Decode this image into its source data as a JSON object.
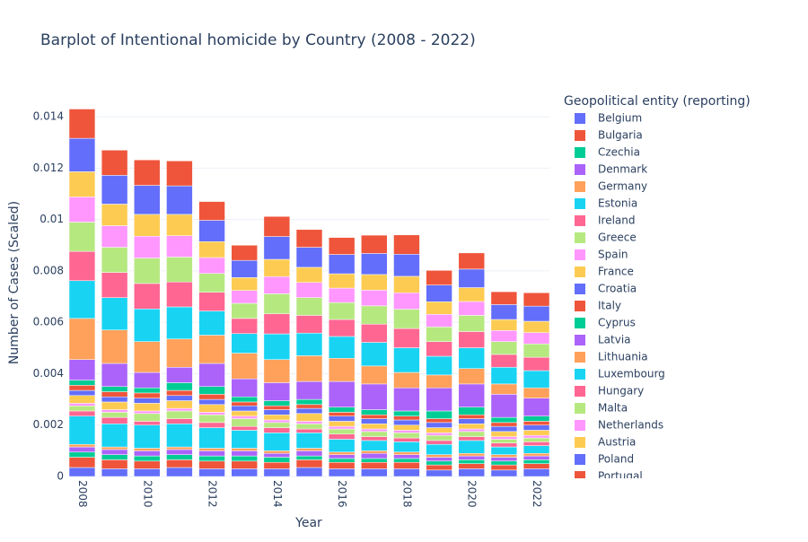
{
  "chart_data": {
    "type": "stacked_bar",
    "title": "Barplot of Intentional homicide by Country (2008 - 2022)",
    "x_label": "Year",
    "y_label": "Number of Cases (Scaled)",
    "legend_title": "Geopolitical entity (reporting)",
    "x": [
      2008,
      2009,
      2010,
      2011,
      2012,
      2013,
      2014,
      2015,
      2016,
      2017,
      2018,
      2019,
      2020,
      2021,
      2022
    ],
    "xlim": [
      2007.6,
      2022.4
    ],
    "xticks": [
      2008,
      2010,
      2012,
      2014,
      2016,
      2018,
      2020,
      2022
    ],
    "ylim": [
      0,
      0.01505
    ],
    "yticks": [
      0,
      0.002,
      0.004,
      0.006,
      0.008,
      0.01,
      0.012,
      0.014
    ],
    "grid": true,
    "series": [
      {
        "name": "Belgium",
        "color": "#636efa",
        "values": [
          0.00035,
          0.0003,
          0.0003,
          0.00035,
          0.0003,
          0.0003,
          0.0003,
          0.00035,
          0.0003,
          0.0003,
          0.0003,
          0.00025,
          0.0003,
          0.00025,
          0.0003
        ]
      },
      {
        "name": "Bulgaria",
        "color": "#ef553b",
        "values": [
          0.0004,
          0.00035,
          0.0003,
          0.0003,
          0.0003,
          0.0003,
          0.00025,
          0.0003,
          0.00025,
          0.00025,
          0.00025,
          0.0002,
          0.0002,
          0.0002,
          0.0002
        ]
      },
      {
        "name": "Czechia",
        "color": "#00cc96",
        "values": [
          0.0002,
          0.0002,
          0.0002,
          0.0002,
          0.0002,
          0.0002,
          0.0002,
          0.00015,
          0.00015,
          0.00015,
          0.00015,
          0.00015,
          0.00015,
          0.00015,
          0.00015
        ]
      },
      {
        "name": "Denmark",
        "color": "#ab63fa",
        "values": [
          0.0002,
          0.0002,
          0.0002,
          0.0002,
          0.0002,
          0.0002,
          0.00015,
          0.0002,
          0.00015,
          0.0002,
          0.00015,
          0.00015,
          0.00015,
          0.00015,
          0.00015
        ]
      },
      {
        "name": "Germany",
        "color": "#ffa15a",
        "values": [
          0.0001,
          0.0001,
          0.0001,
          0.0001,
          0.0001,
          0.0001,
          0.0001,
          0.0001,
          0.0001,
          0.0001,
          0.0001,
          0.0001,
          0.0001,
          0.0001,
          0.0001
        ]
      },
      {
        "name": "Estonia",
        "color": "#19d3f3",
        "values": [
          0.0011,
          0.0009,
          0.0009,
          0.0009,
          0.0008,
          0.0007,
          0.0007,
          0.0006,
          0.0005,
          0.0004,
          0.0004,
          0.0004,
          0.0005,
          0.0003,
          0.0003
        ]
      },
      {
        "name": "Ireland",
        "color": "#ff6692",
        "values": [
          0.0002,
          0.00025,
          0.00015,
          0.0002,
          0.0002,
          0.00015,
          0.0002,
          0.00015,
          0.0002,
          0.00015,
          0.00015,
          0.00015,
          0.00015,
          0.00015,
          0.00015
        ]
      },
      {
        "name": "Greece",
        "color": "#b6e880",
        "values": [
          0.0002,
          0.0002,
          0.0003,
          0.0003,
          0.0003,
          0.0003,
          0.0002,
          0.0002,
          0.0002,
          0.0002,
          0.0002,
          0.0002,
          0.0002,
          0.00015,
          0.00015
        ]
      },
      {
        "name": "Spain",
        "color": "#ff97ff",
        "values": [
          0.0001,
          0.0001,
          0.0001,
          0.0001,
          0.0001,
          0.0001,
          0.0001,
          0.0001,
          0.0001,
          0.0001,
          0.0001,
          0.0001,
          0.0001,
          0.0001,
          0.0001
        ]
      },
      {
        "name": "France",
        "color": "#fecb52",
        "values": [
          0.0003,
          0.0003,
          0.0003,
          0.0003,
          0.0003,
          0.0002,
          0.0002,
          0.0003,
          0.0002,
          0.0002,
          0.0002,
          0.0002,
          0.0002,
          0.0002,
          0.0002
        ]
      },
      {
        "name": "Croatia",
        "color": "#636efa",
        "values": [
          0.0002,
          0.0002,
          0.0002,
          0.0002,
          0.0002,
          0.0002,
          0.0002,
          0.0002,
          0.0002,
          0.0002,
          0.0002,
          0.0002,
          0.0002,
          0.0002,
          0.0002
        ]
      },
      {
        "name": "Italy",
        "color": "#ef553b",
        "values": [
          0.0002,
          0.0002,
          0.0002,
          0.0002,
          0.0002,
          0.00015,
          0.00015,
          0.00015,
          0.00015,
          0.00015,
          0.00015,
          0.00015,
          0.00015,
          0.00015,
          0.00015
        ]
      },
      {
        "name": "Cyprus",
        "color": "#00cc96",
        "values": [
          0.0002,
          0.0002,
          0.0002,
          0.0003,
          0.0003,
          0.0002,
          0.0002,
          0.0002,
          0.0002,
          0.0002,
          0.0002,
          0.0003,
          0.0003,
          0.0002,
          0.0002
        ]
      },
      {
        "name": "Latvia",
        "color": "#ab63fa",
        "values": [
          0.0008,
          0.0009,
          0.0006,
          0.0006,
          0.0009,
          0.0007,
          0.0007,
          0.0007,
          0.001,
          0.001,
          0.0009,
          0.0009,
          0.0009,
          0.0009,
          0.0007
        ]
      },
      {
        "name": "Lithuania",
        "color": "#ffa15a",
        "values": [
          0.0016,
          0.0013,
          0.0012,
          0.0011,
          0.0011,
          0.001,
          0.0009,
          0.001,
          0.0009,
          0.0007,
          0.0006,
          0.0005,
          0.0006,
          0.0004,
          0.0004
        ]
      },
      {
        "name": "Luxembourg",
        "color": "#19d3f3",
        "values": [
          0.00147,
          0.00126,
          0.00127,
          0.00125,
          0.00094,
          0.00076,
          0.001,
          0.00088,
          0.00085,
          0.00092,
          0.00096,
          0.00073,
          0.00081,
          0.00065,
          0.00067
        ]
      },
      {
        "name": "Hungary",
        "color": "#ff6692",
        "values": [
          0.00114,
          0.00098,
          0.00099,
          0.00097,
          0.00073,
          0.00059,
          0.00078,
          0.00069,
          0.00066,
          0.00071,
          0.00075,
          0.00057,
          0.00063,
          0.0005,
          0.00052
        ]
      },
      {
        "name": "Malta",
        "color": "#b6e880",
        "values": [
          0.00114,
          0.00098,
          0.00099,
          0.00097,
          0.00073,
          0.00059,
          0.00078,
          0.00069,
          0.00066,
          0.00071,
          0.00075,
          0.00057,
          0.00063,
          0.0005,
          0.00052
        ]
      },
      {
        "name": "Netherlands",
        "color": "#ff97ff",
        "values": [
          0.00098,
          0.00084,
          0.00085,
          0.00083,
          0.00062,
          0.0005,
          0.00067,
          0.00059,
          0.00056,
          0.00061,
          0.00064,
          0.00049,
          0.00054,
          0.00043,
          0.00044
        ]
      },
      {
        "name": "Austria",
        "color": "#fecb52",
        "values": [
          0.00098,
          0.00084,
          0.00085,
          0.00083,
          0.00062,
          0.0005,
          0.00067,
          0.00059,
          0.00056,
          0.00061,
          0.00064,
          0.00049,
          0.00054,
          0.00043,
          0.00044
        ]
      },
      {
        "name": "Poland",
        "color": "#636efa",
        "values": [
          0.0013,
          0.00112,
          0.00113,
          0.00111,
          0.00083,
          0.00067,
          0.00089,
          0.00078,
          0.00075,
          0.00082,
          0.00086,
          0.00065,
          0.00072,
          0.00058,
          0.00059
        ]
      },
      {
        "name": "Portugal",
        "color": "#ef553b",
        "values": [
          0.00114,
          0.00098,
          0.00099,
          0.00097,
          0.00073,
          0.00059,
          0.00078,
          0.00069,
          0.00066,
          0.00071,
          0.00075,
          0.00057,
          0.00063,
          0.0005,
          0.00052
        ]
      }
    ]
  }
}
